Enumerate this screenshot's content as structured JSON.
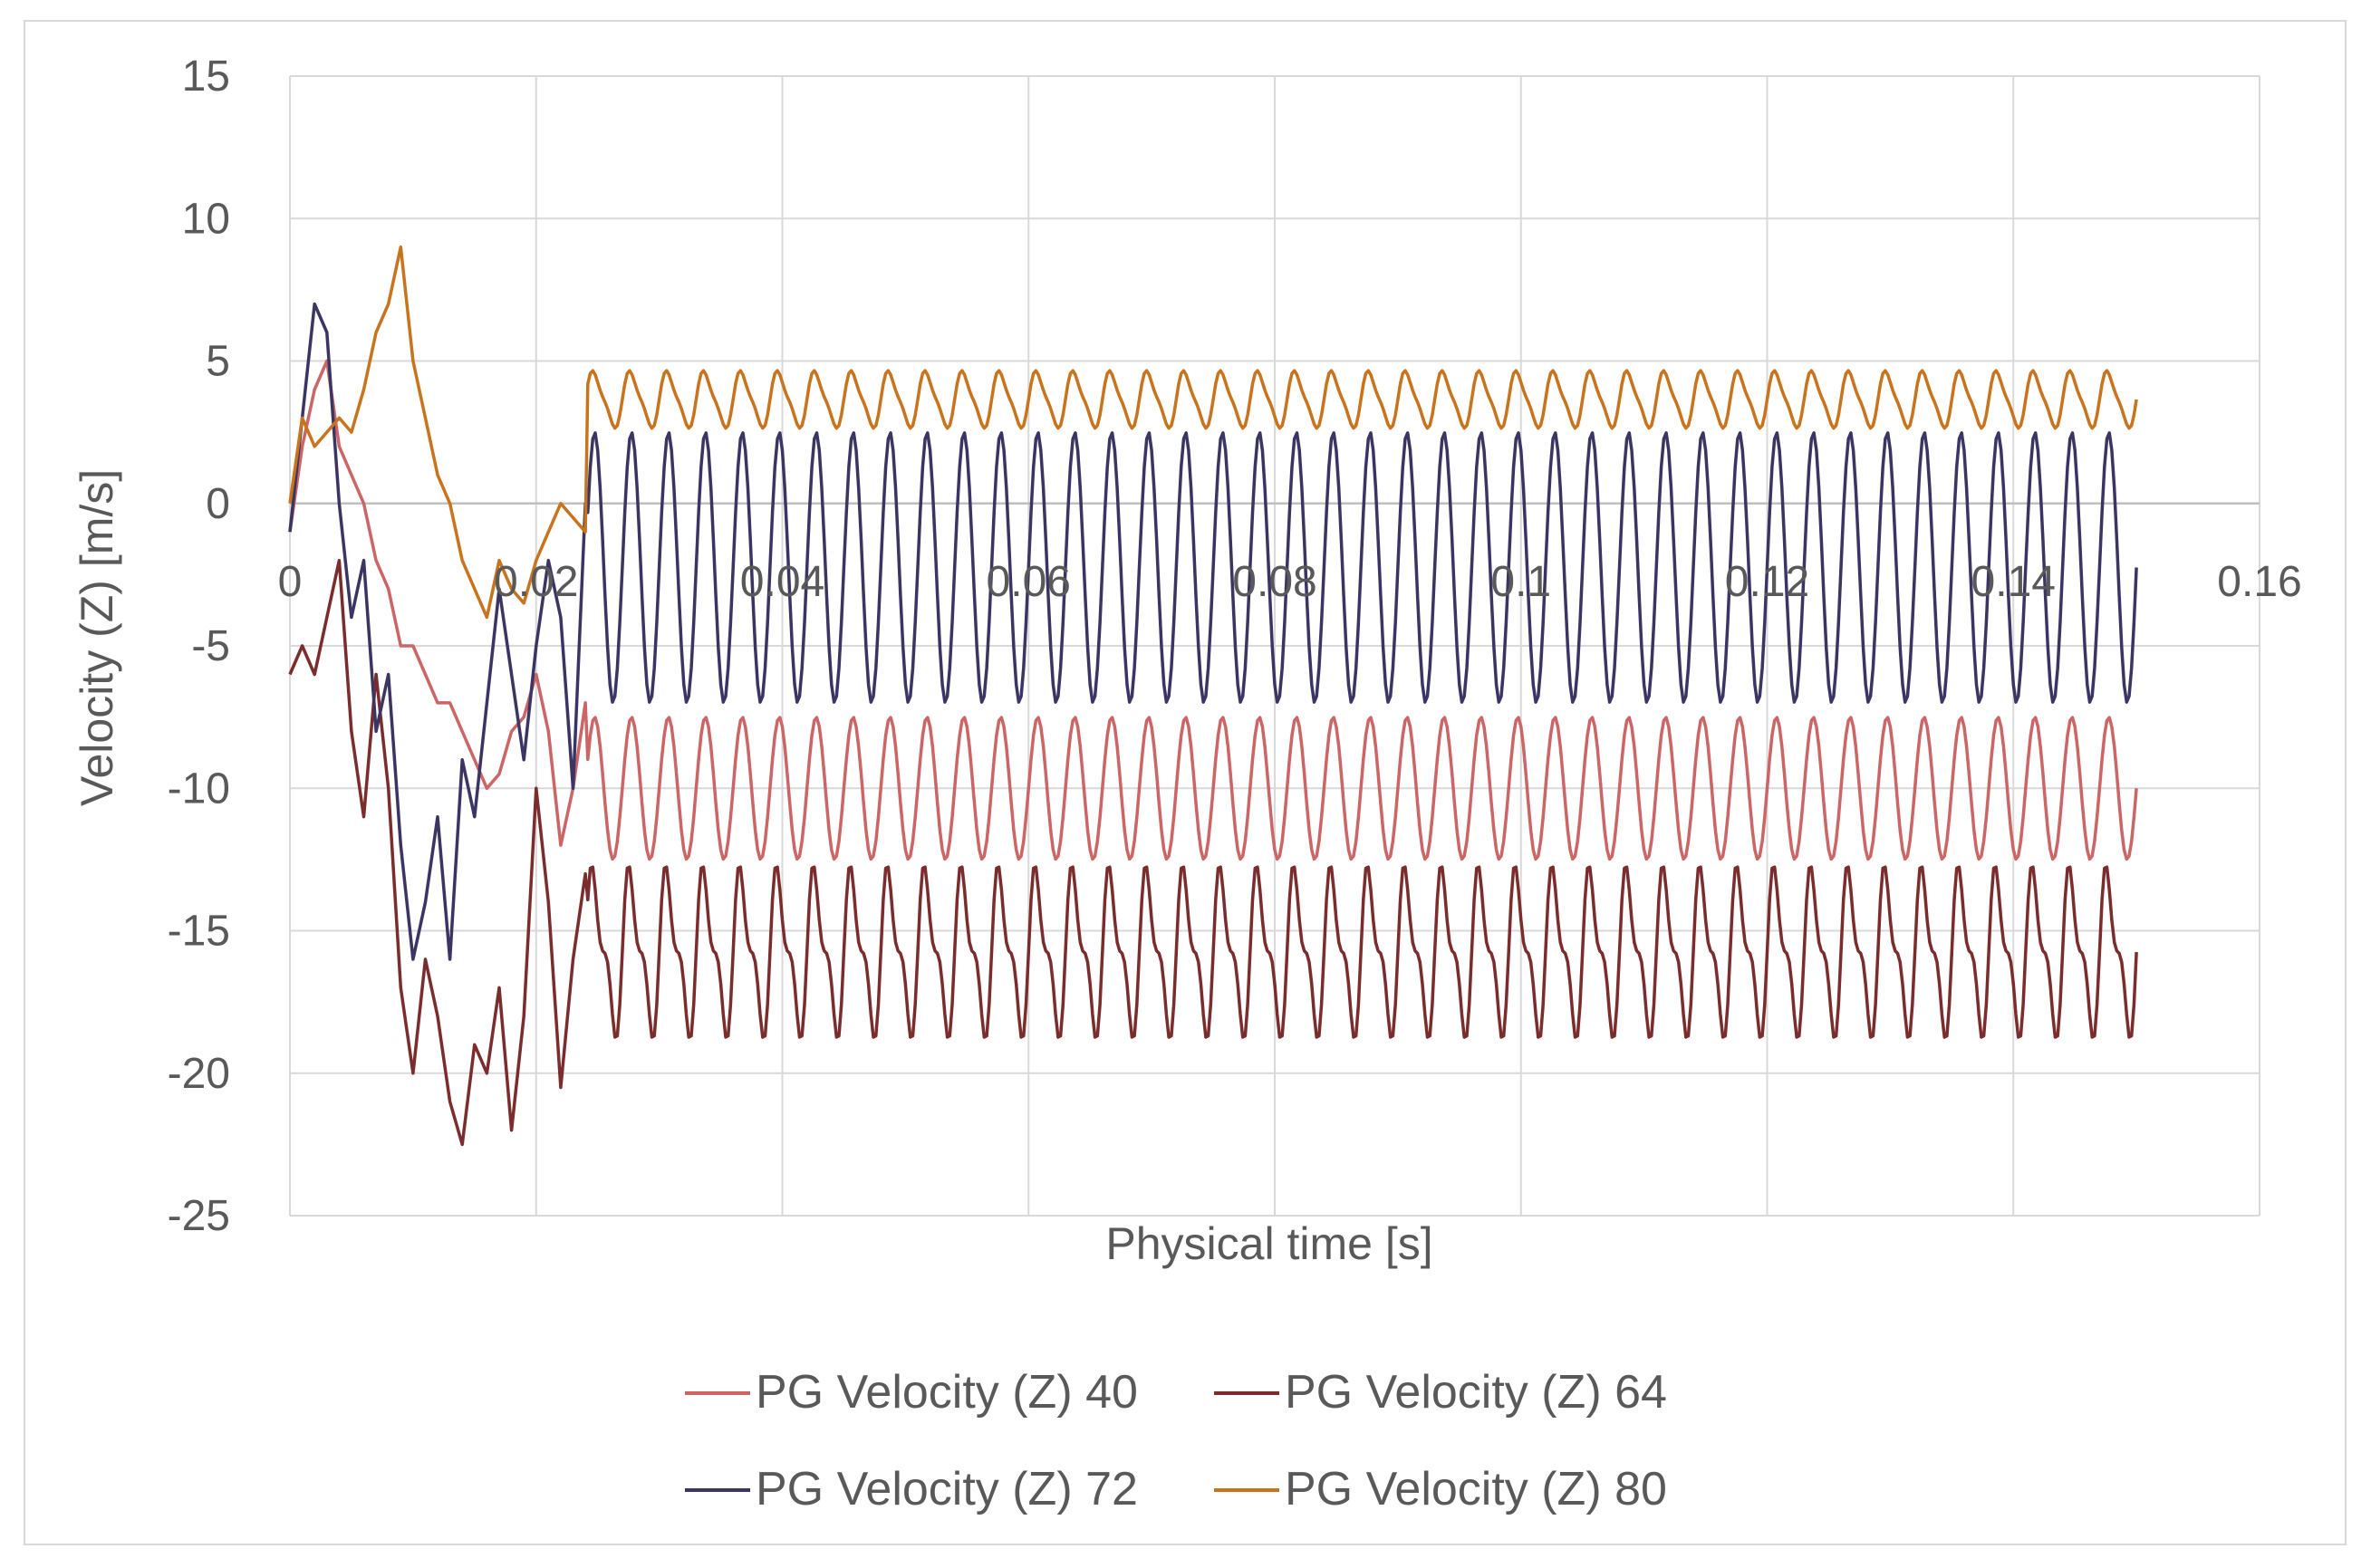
{
  "chart_data": {
    "type": "line",
    "title": "",
    "xlabel": "Physical time [s]",
    "ylabel": "Velocity (Z) [m/s]",
    "xlim": [
      0,
      0.16
    ],
    "ylim": [
      -25,
      15
    ],
    "x_ticks": [
      "0",
      "0.02",
      "0.04",
      "0.06",
      "0.08",
      "0.1",
      "0.12",
      "0.14",
      "0.16"
    ],
    "y_ticks": [
      "15",
      "10",
      "5",
      "0",
      "-5",
      "-10",
      "-15",
      "-20",
      "-25"
    ],
    "grid": true,
    "legend_position": "bottom",
    "series": [
      {
        "name": "PG Velocity (Z) 40",
        "color": "#cc6666",
        "x": [
          0,
          0.001,
          0.002,
          0.003,
          0.004,
          0.005,
          0.006,
          0.007,
          0.008,
          0.009,
          0.01,
          0.011,
          0.012,
          0.013,
          0.014,
          0.015,
          0.016,
          0.017,
          0.018,
          0.019,
          0.02,
          0.021,
          0.022,
          0.023,
          0.024
        ],
        "y": [
          -1,
          2,
          4,
          5,
          2,
          1,
          0,
          -2,
          -3,
          -5,
          -5,
          -6,
          -7,
          -7,
          -8,
          -9,
          -10,
          -9.5,
          -8,
          -7.5,
          -6,
          -8,
          -12,
          -10,
          -7
        ]
      },
      {
        "name": "PG Velocity (Z) 64",
        "color": "#7b2c2c",
        "x": [
          0,
          0.001,
          0.002,
          0.003,
          0.004,
          0.005,
          0.006,
          0.007,
          0.008,
          0.009,
          0.01,
          0.011,
          0.012,
          0.013,
          0.014,
          0.015,
          0.016,
          0.017,
          0.018,
          0.019,
          0.02,
          0.021,
          0.022,
          0.023,
          0.024
        ],
        "y": [
          -6,
          -5,
          -6,
          -4,
          -2,
          -8,
          -11,
          -6,
          -10,
          -17,
          -20,
          -16,
          -18,
          -21,
          -22.5,
          -19,
          -20,
          -17,
          -22,
          -18,
          -10,
          -14,
          -20.5,
          -16,
          -13
        ]
      },
      {
        "name": "PG Velocity (Z) 72",
        "color": "#3b3563",
        "x": [
          0,
          0.001,
          0.002,
          0.003,
          0.004,
          0.005,
          0.006,
          0.007,
          0.008,
          0.009,
          0.01,
          0.011,
          0.012,
          0.013,
          0.014,
          0.015,
          0.016,
          0.017,
          0.018,
          0.019,
          0.02,
          0.021,
          0.022,
          0.023,
          0.024
        ],
        "y": [
          -1,
          3,
          7,
          6,
          0,
          -4,
          -2,
          -8,
          -6,
          -12,
          -16,
          -14,
          -11,
          -16,
          -9,
          -11,
          -7,
          -3,
          -6,
          -9,
          -5,
          -2,
          -4,
          -10,
          0
        ]
      },
      {
        "name": "PG Velocity (Z) 80",
        "color": "#c8741e",
        "x": [
          0,
          0.001,
          0.002,
          0.003,
          0.004,
          0.005,
          0.006,
          0.007,
          0.008,
          0.009,
          0.01,
          0.011,
          0.012,
          0.013,
          0.014,
          0.015,
          0.016,
          0.017,
          0.018,
          0.019,
          0.02,
          0.021,
          0.022,
          0.023,
          0.024
        ],
        "y": [
          0,
          3,
          2,
          2.5,
          3,
          2.5,
          4,
          6,
          7,
          9,
          5,
          3,
          1,
          0,
          -2,
          -3,
          -4,
          -2,
          -3,
          -3.5,
          -2,
          -1,
          0,
          -0.5,
          -1
        ]
      }
    ],
    "periodic_tail": {
      "x_start": 0.024,
      "x_end": 0.15,
      "period": 0.003,
      "series": [
        {
          "name": "PG Velocity (Z) 40",
          "y_min": -12.5,
          "y_max": -7.5
        },
        {
          "name": "PG Velocity (Z) 64",
          "y_min": -19,
          "y_max": -12.5
        },
        {
          "name": "PG Velocity (Z) 72",
          "y_min": -7,
          "y_max": 2.5
        },
        {
          "name": "PG Velocity (Z) 80",
          "y_min": 2.5,
          "y_max": 4.8
        }
      ]
    }
  }
}
